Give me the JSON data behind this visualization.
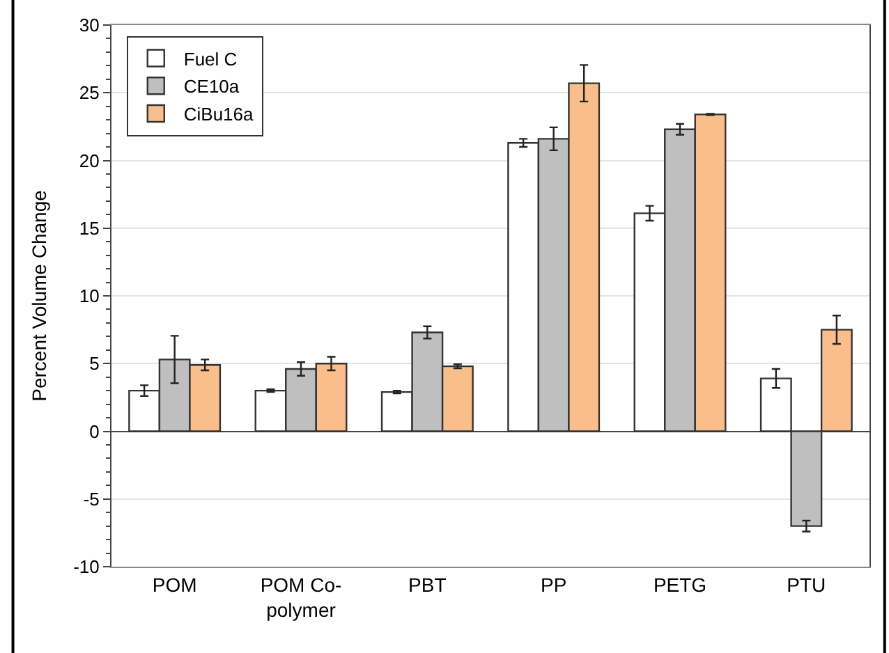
{
  "chart_data": {
    "type": "bar",
    "ylabel": "Percent Volume Change",
    "categories": [
      "POM",
      "POM Co-\npolymer",
      "PBT",
      "PP",
      "PETG",
      "PTU"
    ],
    "series": [
      {
        "name": "Fuel C",
        "color": "#ffffff",
        "values": [
          3.0,
          3.0,
          2.9,
          21.3,
          16.1,
          3.9
        ],
        "errors": [
          0.4,
          0.1,
          0.1,
          0.3,
          0.55,
          0.7
        ]
      },
      {
        "name": "CE10a",
        "color": "#bfbfbf",
        "values": [
          5.3,
          4.6,
          7.3,
          21.6,
          22.3,
          -7.0
        ],
        "errors": [
          1.75,
          0.5,
          0.45,
          0.85,
          0.4,
          0.4
        ]
      },
      {
        "name": "CiBu16a",
        "color": "#f9be8c",
        "values": [
          4.9,
          5.0,
          4.8,
          25.7,
          23.4,
          7.5
        ],
        "errors": [
          0.4,
          0.5,
          0.15,
          1.35,
          0.05,
          1.05
        ]
      }
    ],
    "ylim": [
      -10,
      30
    ],
    "yticks": [
      -10,
      -5,
      0,
      5,
      10,
      15,
      20,
      25,
      30
    ],
    "grid": "y",
    "legend": "top left"
  }
}
